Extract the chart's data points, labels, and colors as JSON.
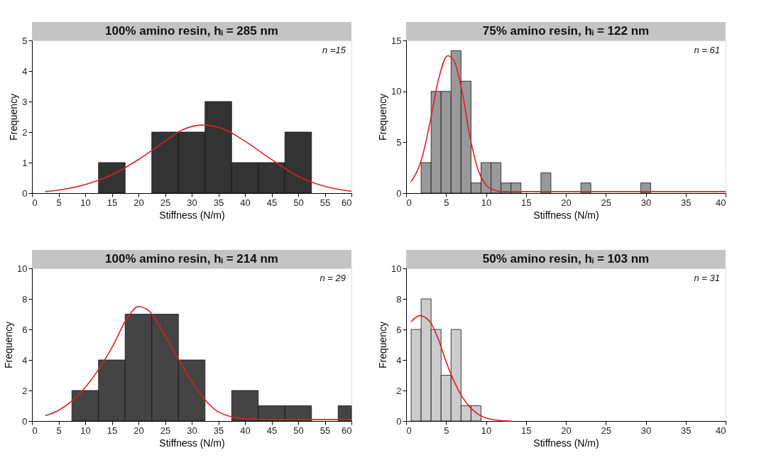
{
  "chart_data": [
    {
      "type": "histogram",
      "title": "100% amino resin, hᵢ = 285 nm",
      "xlabel": "Stiffness (N/m)",
      "ylabel": "Frequency",
      "annotations": [
        "n =15"
      ],
      "bins": [
        12.5,
        17.5,
        22.5,
        27.5,
        32.5,
        37.5,
        42.5,
        47.5,
        52.5
      ],
      "values": [
        1,
        0,
        2,
        2,
        3,
        1,
        1,
        2
      ],
      "color": "#333333",
      "series": [
        {
          "type": "line",
          "color": "#e02020",
          "x": [
            2.5,
            5,
            10,
            15,
            20,
            25,
            28,
            32,
            36,
            40,
            45,
            50,
            55,
            60
          ],
          "values": [
            0.05,
            0.1,
            0.28,
            0.6,
            1.1,
            1.7,
            2.05,
            2.23,
            2.1,
            1.7,
            1.1,
            0.55,
            0.22,
            0.06
          ]
        }
      ],
      "xlim": [
        0,
        60
      ],
      "xticks": [
        0,
        5,
        10,
        15,
        20,
        25,
        30,
        35,
        40,
        45,
        50,
        55,
        60
      ],
      "ylim": [
        0,
        5
      ],
      "yticks": [
        0,
        1,
        2,
        3,
        4,
        5
      ],
      "grid": false
    },
    {
      "type": "histogram",
      "title": "75% amino resin, hᵢ = 122 nm",
      "xlabel": "Stiffness (N/m)",
      "ylabel": "Frequency",
      "annotations": [
        "n = 61"
      ],
      "bins": [
        1.875,
        3.125,
        4.375,
        5.625,
        6.875,
        8.125,
        9.375,
        10.625,
        11.875,
        13.125,
        14.375,
        15.625,
        16.875,
        18.125,
        19.375,
        20.625,
        21.875,
        23.125,
        24.375,
        25.625,
        26.875,
        28.125,
        29.375,
        30.625
      ],
      "values": [
        3,
        10,
        10,
        14,
        11,
        1,
        3,
        3,
        1,
        1,
        0,
        0,
        2,
        0,
        0,
        0,
        1,
        0,
        0,
        0,
        0,
        0,
        1
      ],
      "color": "#999999",
      "series": [
        {
          "type": "line",
          "color": "#e02020",
          "x": [
            0.6,
            2,
            3,
            4,
            5.2,
            6,
            7,
            8,
            9,
            10,
            11,
            12,
            15,
            40
          ],
          "values": [
            1.1,
            3.5,
            7,
            11,
            13.5,
            13,
            10,
            5.5,
            2.3,
            0.8,
            0.3,
            0.15,
            0.15,
            0.15
          ]
        }
      ],
      "xlim": [
        0,
        40
      ],
      "xticks": [
        0,
        5,
        10,
        15,
        20,
        25,
        30,
        35,
        40
      ],
      "ylim": [
        0,
        15
      ],
      "yticks": [
        0,
        5,
        10,
        15
      ],
      "grid": false
    },
    {
      "type": "histogram",
      "title": "100% amino resin, hᵢ = 214 nm",
      "xlabel": "Stiffness (N/m)",
      "ylabel": "Frequency",
      "annotations": [
        "n = 29"
      ],
      "bins": [
        7.5,
        12.5,
        17.5,
        22.5,
        27.5,
        32.5,
        37.5,
        42.5,
        47.5,
        52.5,
        57.5,
        60
      ],
      "values": [
        2,
        4,
        7,
        7,
        4,
        0,
        2,
        1,
        1,
        0,
        1
      ],
      "color": "#444444",
      "series": [
        {
          "type": "line",
          "color": "#e02020",
          "x": [
            2.5,
            5,
            10,
            15,
            18,
            20,
            22,
            25,
            30,
            33,
            35,
            40,
            45,
            60
          ],
          "values": [
            0.35,
            0.7,
            2.2,
            4.8,
            6.8,
            7.5,
            7.2,
            5.6,
            2.6,
            1.2,
            0.6,
            0.15,
            0.1,
            0.1
          ]
        }
      ],
      "xlim": [
        0,
        60
      ],
      "xticks": [
        0,
        5,
        10,
        15,
        20,
        25,
        30,
        35,
        40,
        45,
        50,
        55,
        60
      ],
      "ylim": [
        0,
        10
      ],
      "yticks": [
        0,
        2,
        4,
        6,
        8,
        10
      ],
      "grid": false
    },
    {
      "type": "histogram",
      "title": "50% amino resin, hᵢ = 103 nm",
      "xlabel": "Stiffness (N/m)",
      "ylabel": "Frequency",
      "annotations": [
        "n = 31"
      ],
      "bins": [
        0.625,
        1.875,
        3.125,
        4.375,
        5.625,
        6.875,
        8.125,
        9.375
      ],
      "values": [
        6,
        8,
        6,
        3,
        6,
        1,
        1
      ],
      "color": "#cccccc",
      "series": [
        {
          "type": "line",
          "color": "#e02020",
          "x": [
            0.6,
            1.7,
            3,
            4,
            5,
            6,
            7,
            8,
            9,
            10,
            11,
            12,
            13.2
          ],
          "values": [
            6.5,
            6.9,
            6.5,
            5.4,
            3.9,
            2.6,
            1.6,
            0.9,
            0.45,
            0.2,
            0.08,
            0.02,
            0.0
          ]
        }
      ],
      "xlim": [
        0,
        40
      ],
      "xticks": [
        0,
        5,
        10,
        15,
        20,
        25,
        30,
        35,
        40
      ],
      "ylim": [
        0,
        10
      ],
      "yticks": [
        0,
        2,
        4,
        6,
        8,
        10
      ],
      "grid": false
    }
  ]
}
